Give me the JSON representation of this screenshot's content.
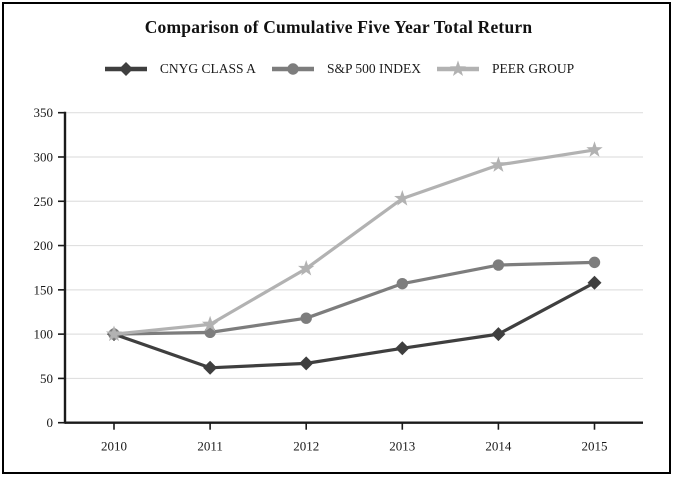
{
  "page": {
    "background": "#ffffff",
    "frame_color": "#000000"
  },
  "chart_data": {
    "type": "line",
    "title": "Comparison of Cumulative Five Year Total Return",
    "x": [
      "2010",
      "2011",
      "2012",
      "2013",
      "2014",
      "2015"
    ],
    "series": [
      {
        "name": "CNYG CLASS A",
        "marker": "diamond",
        "color": "#3f3f3f",
        "values": [
          100,
          62,
          67,
          84,
          100,
          158
        ]
      },
      {
        "name": "S&P 500 INDEX",
        "marker": "circle",
        "color": "#7d7d7d",
        "values": [
          100,
          102,
          118,
          157,
          178,
          181
        ]
      },
      {
        "name": "PEER GROUP",
        "marker": "star",
        "color": "#b2b2b2",
        "values": [
          100,
          111,
          174,
          253,
          291,
          308
        ]
      }
    ],
    "ylim": [
      0,
      350
    ],
    "y_ticks": [
      0,
      50,
      100,
      150,
      200,
      250,
      300,
      350
    ],
    "grid": "horizontal",
    "legend_position": "top",
    "colors": {
      "grid": "#e0e0e0",
      "axis": "#1a1a1a",
      "tick_text": "#1a1a1a"
    }
  }
}
